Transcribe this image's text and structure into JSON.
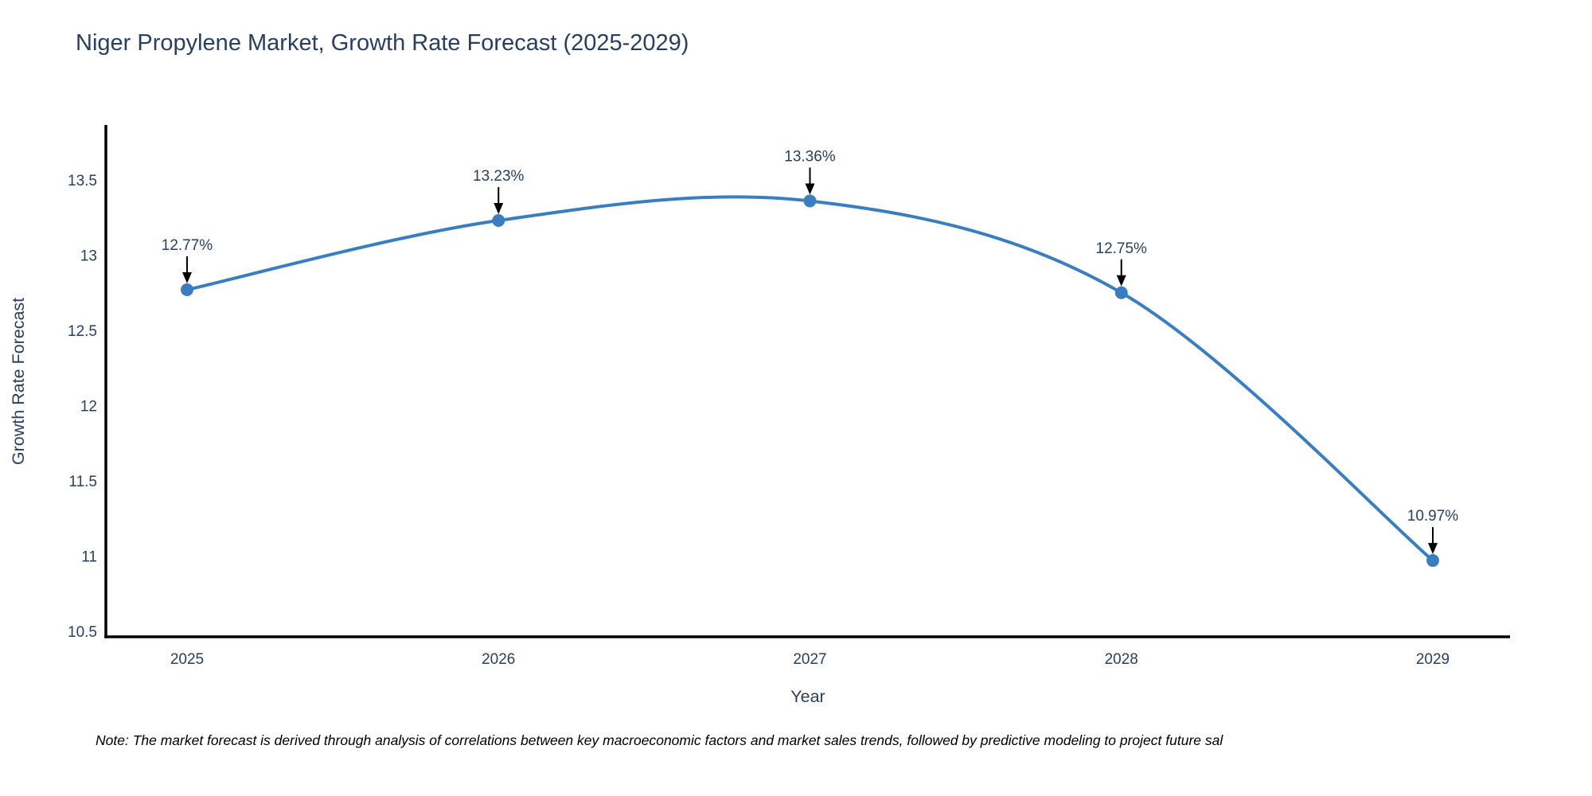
{
  "chart": {
    "title": "Niger Propylene Market, Growth Rate Forecast (2025-2029)",
    "note": "Note: The market forecast is derived through analysis of correlations between key macroeconomic factors and market sales trends, followed by predictive modeling to project future sal"
  },
  "chart_data": {
    "type": "line",
    "title": "Niger Propylene Market, Growth Rate Forecast (2025-2029)",
    "xlabel": "Year",
    "ylabel": "Growth Rate Forecast",
    "categories": [
      2025,
      2026,
      2027,
      2028,
      2029
    ],
    "series": [
      {
        "name": "Growth Rate Forecast",
        "values": [
          12.77,
          13.23,
          13.36,
          12.75,
          10.97
        ],
        "point_labels": [
          "12.77%",
          "13.23%",
          "13.36%",
          "12.75%",
          "10.97%"
        ]
      }
    ],
    "y_ticks": [
      10.5,
      11,
      11.5,
      12,
      12.5,
      13,
      13.5
    ],
    "ylim": [
      10.46,
      13.9
    ],
    "line_shape": "spline",
    "grid": false,
    "legend_position": "none",
    "annotations_arrow": true,
    "colors": {
      "line": "#3a7ebf",
      "marker": "#3a7ebf",
      "axis_line": "#000000",
      "tick_text": "#2a3f5f",
      "title_text": "#2a3f5f",
      "annotation_text": "#2a3f5f",
      "arrow": "#000000",
      "background": "#ffffff"
    }
  }
}
